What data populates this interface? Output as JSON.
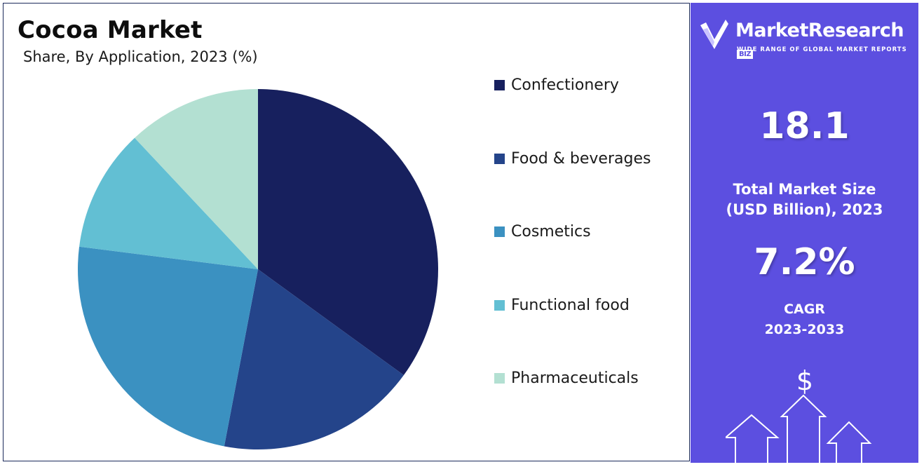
{
  "chart_data": {
    "type": "pie",
    "title": "Cocoa Market",
    "subtitle": "Share, By Application, 2023 (%)",
    "categories": [
      "Confectionery",
      "Food & beverages",
      "Cosmetics",
      "Functional food",
      "Pharmaceuticals"
    ],
    "values": [
      35,
      18,
      24,
      11,
      12
    ],
    "colors": [
      "#17205e",
      "#24448a",
      "#3b91c1",
      "#62bfd3",
      "#b3e0d2"
    ],
    "start_angle_deg": 0,
    "direction": "clockwise",
    "legend_position": "right"
  },
  "panel": {
    "brand": {
      "name": "MarketResearch",
      "badge": "BIZ",
      "tagline": "WIDE RANGE OF GLOBAL MARKET REPORTS"
    },
    "market_size_value": "18.1",
    "market_size_label_line1": "Total Market Size",
    "market_size_label_line2": "(USD Billion), 2023",
    "cagr_value": "7.2%",
    "cagr_label_line1": "CAGR",
    "cagr_label_line2": "2023-2033",
    "currency_symbol": "$"
  }
}
